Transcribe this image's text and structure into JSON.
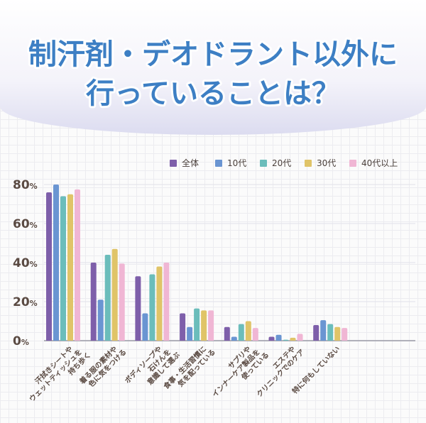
{
  "title": {
    "line1": "制汗剤・デオドラント以外に",
    "line2": "行っていることは？"
  },
  "chart_data": {
    "type": "bar",
    "title": "制汗剤・デオドラント以外に行っていることは？",
    "xlabel": "",
    "ylabel": "",
    "ylim": [
      0,
      80
    ],
    "yticks": [
      "0%",
      "20%",
      "40%",
      "60%",
      "80%"
    ],
    "ytick_values": [
      0,
      20,
      40,
      60,
      80
    ],
    "grid": true,
    "legend_position": "top-right",
    "categories": [
      [
        "汗拭きシートや",
        "ウェットティッシュを",
        "持ち歩く"
      ],
      [
        "着る服の素材や",
        "色に気をつける"
      ],
      [
        "ボディソープや",
        "石けんを",
        "意識して選ぶ"
      ],
      [
        "食事・生活習慣に",
        "気を配っている"
      ],
      [
        "サプリや",
        "インナーケア製品を",
        "使っている"
      ],
      [
        "エステや",
        "クリニックでのケア"
      ],
      [
        "特に何もしていない"
      ]
    ],
    "series": [
      {
        "name": "全体",
        "color": "#7e5faa",
        "values": [
          76,
          40,
          33,
          14,
          7,
          2,
          8
        ]
      },
      {
        "name": "10代",
        "color": "#6a95d2",
        "values": [
          80,
          21,
          14,
          7,
          2,
          3,
          10.5
        ]
      },
      {
        "name": "20代",
        "color": "#6bbdbb",
        "values": [
          74,
          44,
          34,
          16.5,
          8.5,
          0.5,
          8.5
        ]
      },
      {
        "name": "30代",
        "color": "#e0c468",
        "values": [
          75,
          47,
          38,
          15.5,
          10,
          1.5,
          7
        ]
      },
      {
        "name": "40代以上",
        "color": "#f0b6d4",
        "values": [
          77.5,
          39.5,
          40,
          15.5,
          6.5,
          3.5,
          6.5
        ]
      }
    ]
  }
}
